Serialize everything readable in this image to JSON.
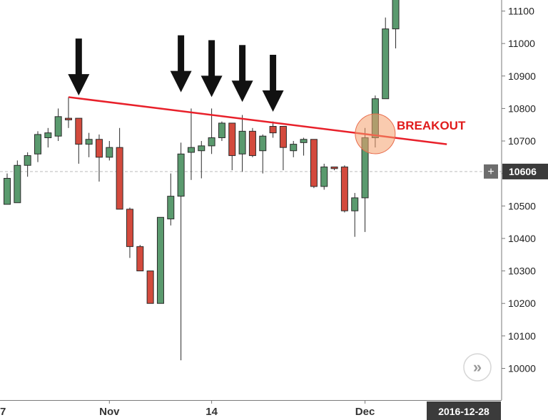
{
  "chart_data": {
    "type": "candlestick",
    "y_axis": {
      "ticks": [
        10000,
        10100,
        10200,
        10300,
        10400,
        10500,
        10600,
        10700,
        10800,
        10900,
        11000,
        11100
      ],
      "ylim": [
        9930,
        11170
      ]
    },
    "x_labels": [
      {
        "text": "7",
        "index": -1
      },
      {
        "text": "Nov",
        "index": 10
      },
      {
        "text": "14",
        "index": 20
      },
      {
        "text": "Dec",
        "index": 35
      }
    ],
    "current_price": {
      "value": 10606,
      "label": "10606"
    },
    "crosshair_date": "2016-12-28",
    "up_color": "#5a9a6e",
    "down_color": "#d34a3d",
    "candles": [
      {
        "i": 0,
        "o": 10505,
        "h": 10600,
        "l": 10505,
        "c": 10585
      },
      {
        "i": 1,
        "o": 10510,
        "h": 10640,
        "l": 10510,
        "c": 10625
      },
      {
        "i": 2,
        "o": 10625,
        "h": 10665,
        "l": 10590,
        "c": 10655
      },
      {
        "i": 3,
        "o": 10660,
        "h": 10730,
        "l": 10635,
        "c": 10720
      },
      {
        "i": 4,
        "o": 10710,
        "h": 10740,
        "l": 10680,
        "c": 10725
      },
      {
        "i": 5,
        "o": 10715,
        "h": 10800,
        "l": 10700,
        "c": 10775
      },
      {
        "i": 6,
        "o": 10770,
        "h": 10835,
        "l": 10740,
        "c": 10765
      },
      {
        "i": 7,
        "o": 10770,
        "h": 10770,
        "l": 10630,
        "c": 10690
      },
      {
        "i": 8,
        "o": 10690,
        "h": 10725,
        "l": 10650,
        "c": 10705
      },
      {
        "i": 9,
        "o": 10705,
        "h": 10720,
        "l": 10575,
        "c": 10650
      },
      {
        "i": 10,
        "o": 10650,
        "h": 10700,
        "l": 10640,
        "c": 10680
      },
      {
        "i": 11,
        "o": 10680,
        "h": 10740,
        "l": 10490,
        "c": 10490
      },
      {
        "i": 12,
        "o": 10490,
        "h": 10495,
        "l": 10340,
        "c": 10375
      },
      {
        "i": 13,
        "o": 10375,
        "h": 10380,
        "l": 10300,
        "c": 10300
      },
      {
        "i": 14,
        "o": 10300,
        "h": 10300,
        "l": 10200,
        "c": 10200
      },
      {
        "i": 15,
        "o": 10200,
        "h": 10465,
        "l": 10200,
        "c": 10465
      },
      {
        "i": 16,
        "o": 10460,
        "h": 10600,
        "l": 10440,
        "c": 10530
      },
      {
        "i": 17,
        "o": 10530,
        "h": 10695,
        "l": 10025,
        "c": 10660
      },
      {
        "i": 18,
        "o": 10665,
        "h": 10800,
        "l": 10580,
        "c": 10680
      },
      {
        "i": 19,
        "o": 10670,
        "h": 10700,
        "l": 10585,
        "c": 10685
      },
      {
        "i": 20,
        "o": 10685,
        "h": 10800,
        "l": 10660,
        "c": 10710
      },
      {
        "i": 21,
        "o": 10710,
        "h": 10760,
        "l": 10700,
        "c": 10755
      },
      {
        "i": 22,
        "o": 10755,
        "h": 10755,
        "l": 10610,
        "c": 10655
      },
      {
        "i": 23,
        "o": 10660,
        "h": 10780,
        "l": 10605,
        "c": 10730
      },
      {
        "i": 24,
        "o": 10730,
        "h": 10740,
        "l": 10650,
        "c": 10655
      },
      {
        "i": 25,
        "o": 10670,
        "h": 10720,
        "l": 10600,
        "c": 10715
      },
      {
        "i": 26,
        "o": 10745,
        "h": 10760,
        "l": 10710,
        "c": 10725
      },
      {
        "i": 27,
        "o": 10745,
        "h": 10745,
        "l": 10610,
        "c": 10680
      },
      {
        "i": 28,
        "o": 10670,
        "h": 10700,
        "l": 10650,
        "c": 10690
      },
      {
        "i": 29,
        "o": 10695,
        "h": 10710,
        "l": 10655,
        "c": 10705
      },
      {
        "i": 30,
        "o": 10705,
        "h": 10705,
        "l": 10555,
        "c": 10560
      },
      {
        "i": 31,
        "o": 10560,
        "h": 10630,
        "l": 10550,
        "c": 10620
      },
      {
        "i": 32,
        "o": 10620,
        "h": 10620,
        "l": 10610,
        "c": 10615
      },
      {
        "i": 33,
        "o": 10620,
        "h": 10625,
        "l": 10480,
        "c": 10485
      },
      {
        "i": 34,
        "o": 10485,
        "h": 10540,
        "l": 10405,
        "c": 10525
      },
      {
        "i": 35,
        "o": 10525,
        "h": 10740,
        "l": 10420,
        "c": 10710
      },
      {
        "i": 36,
        "o": 10710,
        "h": 10840,
        "l": 10680,
        "c": 10830
      },
      {
        "i": 37,
        "o": 10830,
        "h": 11080,
        "l": 10830,
        "c": 11045
      },
      {
        "i": 38,
        "o": 11045,
        "h": 11200,
        "l": 10985,
        "c": 11200
      }
    ],
    "annotations": {
      "breakout_label": "BREAKOUT",
      "trendline": {
        "from": {
          "i": 6,
          "y": 10835
        },
        "to": {
          "i": 43,
          "y": 10690
        },
        "color": "#e8202a"
      },
      "breakout_circle": {
        "i": 36,
        "y": 10722
      },
      "arrows": [
        {
          "i": 7,
          "y_tip": 10840
        },
        {
          "i": 17,
          "y_tip": 10850
        },
        {
          "i": 20,
          "y_tip": 10835
        },
        {
          "i": 23,
          "y_tip": 10820
        },
        {
          "i": 26,
          "y_tip": 10790
        }
      ]
    }
  },
  "ui": {
    "price_tag_button": "+",
    "scroll_button": "»"
  }
}
